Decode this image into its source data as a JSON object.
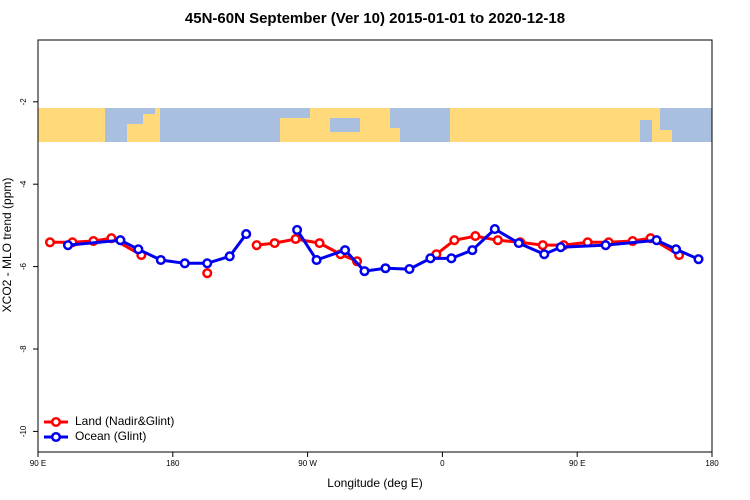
{
  "chart_data": {
    "type": "line",
    "title": "45N-60N September (Ver 10)   2015-01-01 to 2020-12-18",
    "xlabel": "Longitude (deg E)",
    "ylabel": "XCO2 - MLO trend (ppm)",
    "xlim": [
      90,
      540
    ],
    "ylim": [
      -10.5,
      -0.5
    ],
    "xticks": [
      {
        "value": 90,
        "label": "90 E"
      },
      180,
      {
        "value": 270,
        "label": "90 W"
      },
      {
        "value": 360,
        "label": "0"
      },
      {
        "value": 450,
        "label": "90 E"
      },
      {
        "value": 540,
        "label": "180"
      }
    ],
    "yticks": [
      -2,
      -4,
      -6,
      -8,
      -10
    ],
    "legend": "lower left",
    "series": [
      {
        "name": "Land (Nadir&Glint)",
        "color": "#ff0000",
        "x": [
          98,
          113,
          127,
          139,
          159,
          180,
          203,
          220,
          236,
          248,
          262,
          278,
          292,
          303,
          330,
          356,
          368,
          382,
          397,
          412,
          427,
          441,
          457,
          471,
          487,
          499,
          518
        ],
        "values": [
          -5.41,
          -5.41,
          -5.38,
          -5.31,
          -5.72,
          null,
          -6.16,
          null,
          -5.48,
          -5.43,
          -5.33,
          -5.43,
          -5.7,
          -5.87,
          null,
          -5.7,
          -5.36,
          -5.26,
          -5.36,
          -5.41,
          -5.48,
          -5.48,
          -5.41,
          -5.41,
          -5.38,
          -5.31,
          -5.72
        ]
      },
      {
        "name": "Ocean (Glint)",
        "color": "#0000ee",
        "x": [
          110,
          145,
          157,
          172,
          188,
          203,
          218,
          229,
          245,
          263,
          276,
          295,
          308,
          322,
          338,
          352,
          366,
          380,
          395,
          411,
          428,
          439,
          469,
          503,
          516,
          531
        ],
        "values": [
          -5.48,
          -5.36,
          -5.58,
          -5.84,
          -5.92,
          -5.92,
          -5.75,
          -5.21,
          null,
          -5.11,
          -5.84,
          -5.6,
          -6.11,
          -6.04,
          -6.06,
          -5.8,
          -5.8,
          -5.6,
          -5.09,
          -5.43,
          -5.7,
          -5.53,
          -5.48,
          -5.36,
          -5.58,
          -5.82
        ]
      }
    ]
  }
}
